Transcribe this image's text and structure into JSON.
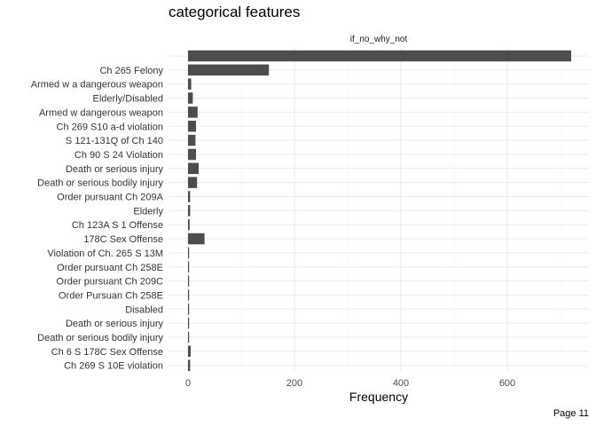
{
  "page": {
    "footer": "Page 11"
  },
  "chart_data": {
    "type": "bar",
    "orientation": "horizontal",
    "title": "categorical features",
    "facet": "if_no_why_not",
    "xlabel": "Frequency",
    "ylabel": "",
    "xlim": [
      0,
      720
    ],
    "xticks": [
      0,
      200,
      400,
      600
    ],
    "grid": true,
    "categories": [
      "",
      "Ch 265 Felony",
      "Armed w a dangerous weapon",
      "Elderly/Disabled",
      "Armed w dangerous weapon",
      "Ch 269 S10 a-d violation",
      "S 121-131Q of Ch 140",
      "Ch 90 S 24 Violation",
      "Death or serious injury",
      "Death or serious bodily injury",
      "Order pursuant Ch 209A",
      "Elderly",
      "Ch 123A S 1 Offense",
      "178C Sex Offense",
      "Violation of Ch. 265 S 13M",
      "Order pursuant Ch 258E",
      "Order pursuant Ch 209C",
      "Order Pursuan Ch 258E",
      "Disabled",
      "Death or serious injury ",
      "Death or serious bodily injury ",
      "Ch 6 S 178C Sex Offense",
      "Ch 269 S 10E violation"
    ],
    "values": [
      720,
      152,
      6,
      9,
      18,
      15,
      14,
      15,
      20,
      17,
      4,
      4,
      3,
      31,
      2,
      2,
      2,
      2,
      2,
      2,
      2,
      5,
      4
    ]
  }
}
